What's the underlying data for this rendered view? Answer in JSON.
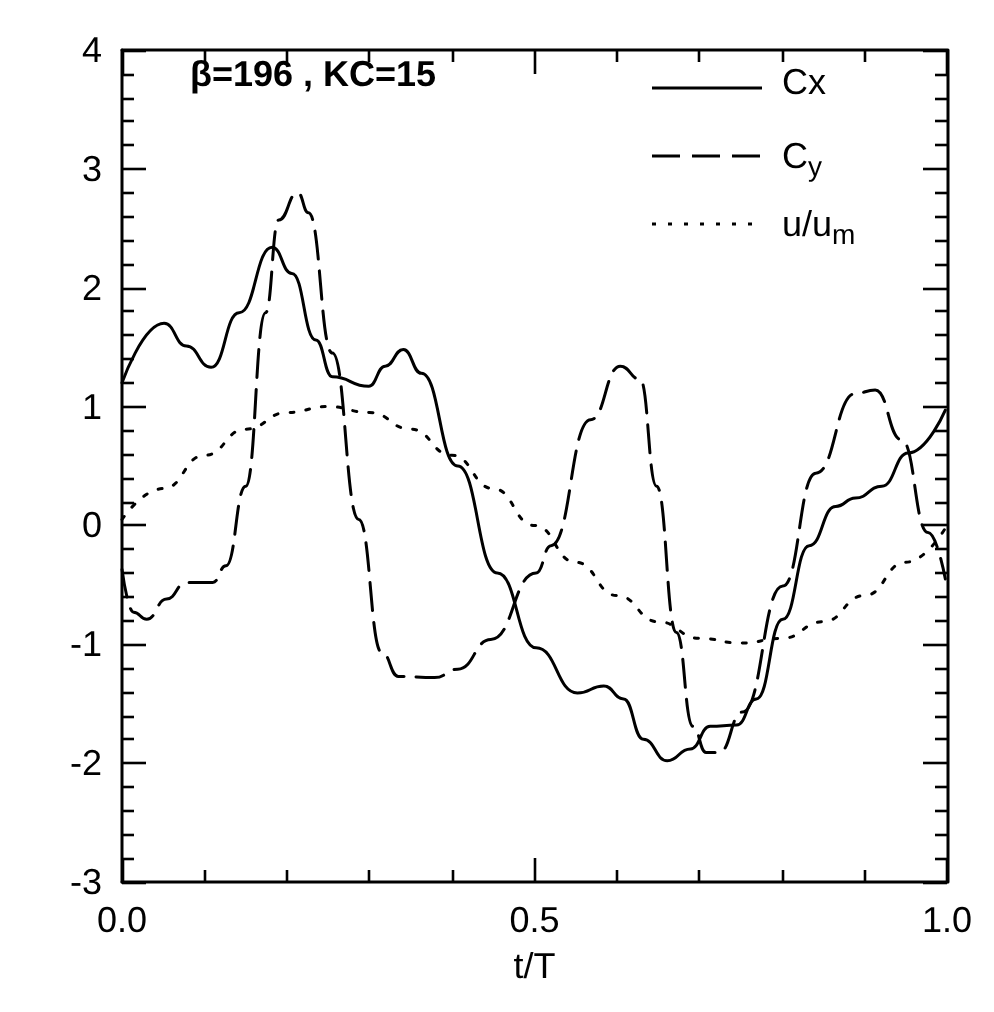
{
  "chart_data": {
    "type": "line",
    "xlabel": "t/T",
    "annotations": [
      "β=196 , KC=15"
    ],
    "legend": "top right",
    "grid": false,
    "marker": "none",
    "xlim": [
      0,
      1
    ],
    "ylim": [
      -3,
      4
    ],
    "xticks": [
      {
        "value": 0,
        "label": "0.0"
      },
      {
        "value": 0.1,
        "label": null
      },
      {
        "value": 0.2,
        "label": null
      },
      {
        "value": 0.3,
        "label": null
      },
      {
        "value": 0.4,
        "label": null
      },
      {
        "value": 0.5,
        "label": "0.5"
      },
      {
        "value": 0.6,
        "label": null
      },
      {
        "value": 0.7,
        "label": null
      },
      {
        "value": 0.8,
        "label": null
      },
      {
        "value": 0.9,
        "label": null
      },
      {
        "value": 1,
        "label": "1.0"
      }
    ],
    "yticks": [
      -3,
      {
        "value": -2.8,
        "label": null
      },
      {
        "value": -2.6,
        "label": null
      },
      {
        "value": -2.4,
        "label": null
      },
      {
        "value": -2.2,
        "label": null
      },
      -2,
      {
        "value": -1.8,
        "label": null
      },
      {
        "value": -1.6,
        "label": null
      },
      {
        "value": -1.4,
        "label": null
      },
      {
        "value": -1.2,
        "label": null
      },
      -1,
      {
        "value": -0.8,
        "label": null
      },
      {
        "value": -0.6,
        "label": null
      },
      {
        "value": -0.4,
        "label": null
      },
      {
        "value": -0.2,
        "label": null
      },
      0,
      {
        "value": 0.2,
        "label": null
      },
      {
        "value": 0.4,
        "label": null
      },
      {
        "value": 0.6,
        "label": null
      },
      {
        "value": 0.8,
        "label": null
      },
      1,
      {
        "value": 1.2,
        "label": null
      },
      {
        "value": 1.4,
        "label": null
      },
      {
        "value": 1.6,
        "label": null
      },
      {
        "value": 1.8,
        "label": null
      },
      2,
      {
        "value": 2.2,
        "label": null
      },
      {
        "value": 2.4,
        "label": null
      },
      {
        "value": 2.6,
        "label": null
      },
      {
        "value": 2.8,
        "label": null
      },
      3,
      {
        "value": 3.2,
        "label": null
      },
      {
        "value": 3.4,
        "label": null
      },
      {
        "value": 3.6,
        "label": null
      },
      {
        "value": 3.8,
        "label": null
      },
      4
    ],
    "series": [
      {
        "name": "Cx",
        "color": "#000000",
        "line_style": "solid",
        "x": [
          0,
          0.051,
          0.078,
          0.108,
          0.142,
          0.182,
          0.206,
          0.235,
          0.255,
          0.299,
          0.319,
          0.341,
          0.363,
          0.407,
          0.455,
          0.502,
          0.552,
          0.584,
          0.608,
          0.632,
          0.661,
          0.689,
          0.713,
          0.745,
          0.769,
          0.801,
          0.833,
          0.865,
          0.889,
          0.921,
          0.953,
          0.998
        ],
        "values": [
          1.2,
          1.7,
          1.51,
          1.33,
          1.79,
          2.34,
          2.12,
          1.56,
          1.25,
          1.17,
          1.34,
          1.48,
          1.28,
          0.5,
          -0.4,
          -1.03,
          -1.41,
          -1.35,
          -1.46,
          -1.8,
          -1.98,
          -1.88,
          -1.69,
          -1.68,
          -1.46,
          -0.79,
          -0.17,
          0.16,
          0.23,
          0.33,
          0.61,
          0.97
        ]
      },
      {
        "name": "C$_{y}$",
        "color": "#000000",
        "line_style": "dashed",
        "x": [
          0,
          0.014,
          0.03,
          0.054,
          0.078,
          0.11,
          0.126,
          0.15,
          0.174,
          0.19,
          0.213,
          0.226,
          0.255,
          0.287,
          0.315,
          0.335,
          0.379,
          0.407,
          0.447,
          0.502,
          0.52,
          0.568,
          0.604,
          0.628,
          0.648,
          0.672,
          0.692,
          0.708,
          0.724,
          0.752,
          0.801,
          0.841,
          0.889,
          0.913,
          0.945,
          0.977,
          0.998
        ],
        "values": [
          -0.37,
          -0.73,
          -0.79,
          -0.62,
          -0.48,
          -0.48,
          -0.34,
          0.33,
          1.79,
          2.57,
          2.8,
          2.63,
          1.45,
          0.05,
          -1.07,
          -1.27,
          -1.28,
          -1.21,
          -0.96,
          -0.4,
          -0.17,
          0.89,
          1.34,
          1.23,
          0.33,
          -0.9,
          -1.69,
          -1.91,
          -1.91,
          -1.57,
          -0.51,
          0.44,
          1.11,
          1.14,
          0.72,
          -0.06,
          -0.45
        ]
      },
      {
        "name": "u/u$_{m}$",
        "color": "#000000",
        "line_style": "dotted",
        "x": [
          0,
          0.05,
          0.1,
          0.15,
          0.2,
          0.25,
          0.3,
          0.35,
          0.4,
          0.45,
          0.5,
          0.55,
          0.6,
          0.65,
          0.7,
          0.75,
          0.8,
          0.85,
          0.9,
          0.95,
          1
        ],
        "values": [
          0.05,
          0.31,
          0.59,
          0.81,
          0.95,
          1.0,
          0.95,
          0.81,
          0.59,
          0.31,
          0,
          -0.31,
          -0.59,
          -0.81,
          -0.95,
          -0.99,
          -0.95,
          -0.81,
          -0.59,
          -0.31,
          0
        ]
      }
    ]
  }
}
